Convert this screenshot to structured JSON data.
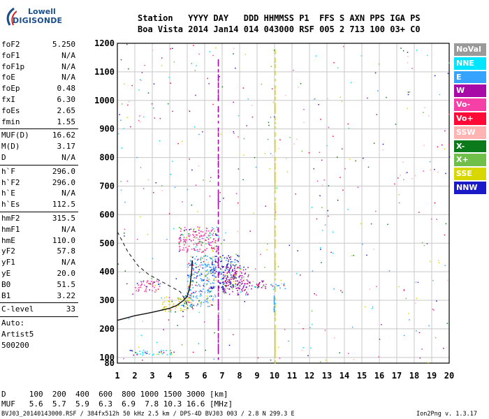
{
  "logo": {
    "line1": "Lowell",
    "line2": "DIGISONDE"
  },
  "header": {
    "line1": "Station   YYYY DAY   DDD HHMMSS P1  FFS S AXN PPS IGA PS",
    "line2": "Boa Vista 2014 Jan14 014 043000 RSF 005 2 713 100 03+ C0"
  },
  "params": {
    "group1": [
      {
        "name": "foF2",
        "value": "5.250"
      },
      {
        "name": "foF1",
        "value": "N/A"
      },
      {
        "name": "foF1p",
        "value": "N/A"
      },
      {
        "name": "foE",
        "value": "N/A"
      },
      {
        "name": "foEp",
        "value": "0.48"
      },
      {
        "name": "fxI",
        "value": "6.30"
      },
      {
        "name": "foEs",
        "value": "2.65"
      },
      {
        "name": "fmin",
        "value": "1.55"
      }
    ],
    "group2": [
      {
        "name": "MUF(D)",
        "value": "16.62"
      },
      {
        "name": "M(D)",
        "value": "3.17"
      },
      {
        "name": "D",
        "value": "N/A"
      }
    ],
    "group3": [
      {
        "name": "h`F",
        "value": "296.0"
      },
      {
        "name": "h`F2",
        "value": "296.0"
      },
      {
        "name": "h`E",
        "value": "N/A"
      },
      {
        "name": "h`Es",
        "value": "112.5"
      }
    ],
    "group4": [
      {
        "name": "hmF2",
        "value": "315.5"
      },
      {
        "name": "hmF1",
        "value": "N/A"
      },
      {
        "name": "hmE",
        "value": "110.0"
      },
      {
        "name": "yF2",
        "value": "57.8"
      },
      {
        "name": "yF1",
        "value": "N/A"
      },
      {
        "name": "yE",
        "value": "20.0"
      },
      {
        "name": "B0",
        "value": "51.5"
      },
      {
        "name": "B1",
        "value": "3.22"
      }
    ],
    "group5": [
      {
        "name": "C-level",
        "value": "33"
      }
    ]
  },
  "auto": {
    "line1": "Auto:",
    "line2": "Artist5",
    "line3": "500200"
  },
  "legend": [
    {
      "label": "NoVal",
      "color": "#9a9a9a"
    },
    {
      "label": "NNE",
      "color": "#00e5ff"
    },
    {
      "label": "E",
      "color": "#36a4ff"
    },
    {
      "label": "W",
      "color": "#a80aa8"
    },
    {
      "label": "Vo-",
      "color": "#f540a8"
    },
    {
      "label": "Vo+",
      "color": "#ff0a36"
    },
    {
      "label": "SSW",
      "color": "#ffb3b3"
    },
    {
      "label": "X-",
      "color": "#0a7a1a"
    },
    {
      "label": "X+",
      "color": "#6fbf4a"
    },
    {
      "label": "SSE",
      "color": "#d8d800"
    },
    {
      "label": "NNW",
      "color": "#1a1ac8"
    }
  ],
  "bottom": {
    "d_line": "D     100  200  400  600  800 1000 1500 3000 [km]",
    "muf_line": "MUF   5.6  5.7  5.9  6.3  6.9  7.8 10.3 16.6 [MHz]"
  },
  "footer": {
    "left": "BVJ03_20140143000.RSF / 384fx512h 50 kHz 2.5 km / DPS-4D BVJ03 003 / 2.8 N 299.3 E",
    "right": "Ion2Png v. 1.3.17"
  },
  "chart_data": {
    "type": "scatter",
    "title": "",
    "xlabel": "",
    "ylabel": "",
    "xlim": [
      1,
      20
    ],
    "ylim": [
      80,
      1200
    ],
    "x_ticks": [
      1,
      2,
      3,
      4,
      5,
      6,
      7,
      8,
      9,
      10,
      11,
      12,
      13,
      14,
      15,
      16,
      17,
      18,
      19,
      20
    ],
    "y_ticks": [
      80,
      100,
      200,
      300,
      400,
      500,
      600,
      700,
      800,
      900,
      1000,
      1100,
      1200
    ],
    "grid": true,
    "dashed_curve": [
      [
        1.0,
        540
      ],
      [
        1.6,
        470
      ],
      [
        2.2,
        420
      ],
      [
        2.8,
        390
      ],
      [
        3.4,
        370
      ],
      [
        4.0,
        350
      ],
      [
        4.6,
        330
      ],
      [
        4.9,
        300
      ],
      [
        5.05,
        270
      ]
    ],
    "profile_curve": [
      [
        1.0,
        230
      ],
      [
        1.5,
        238
      ],
      [
        2.0,
        246
      ],
      [
        2.5,
        252
      ],
      [
        3.0,
        258
      ],
      [
        3.5,
        265
      ],
      [
        4.0,
        272
      ],
      [
        4.4,
        282
      ],
      [
        4.8,
        300
      ],
      [
        5.0,
        315
      ],
      [
        5.15,
        345
      ],
      [
        5.25,
        400
      ],
      [
        5.3,
        440
      ]
    ],
    "trace_clusters": [
      {
        "x": [
          1.7,
          4.3
        ],
        "y": [
          110,
          128
        ],
        "color": "#00e5ff"
      },
      {
        "x": [
          2.0,
          3.5
        ],
        "y": [
          330,
          370
        ],
        "color": "#f540a8"
      },
      {
        "x": [
          3.5,
          5.3
        ],
        "y": [
          260,
          320
        ],
        "color": "#d8d800"
      },
      {
        "x": [
          4.5,
          6.8
        ],
        "y": [
          470,
          560
        ],
        "color": "#f540a8"
      },
      {
        "x": [
          5.0,
          6.6
        ],
        "y": [
          280,
          460
        ],
        "color": "#36a4ff"
      },
      {
        "x": [
          6.3,
          8.0
        ],
        "y": [
          340,
          460
        ],
        "color": "#1a1ac8"
      },
      {
        "x": [
          7.0,
          8.5
        ],
        "y": [
          320,
          420
        ],
        "color": "#a80aa8"
      },
      {
        "x": [
          8.5,
          9.5
        ],
        "y": [
          340,
          370
        ],
        "color": "#a80aa8"
      },
      {
        "x": [
          9.7,
          10.6
        ],
        "y": [
          340,
          360
        ],
        "color": "#36a4ff"
      }
    ]
  }
}
